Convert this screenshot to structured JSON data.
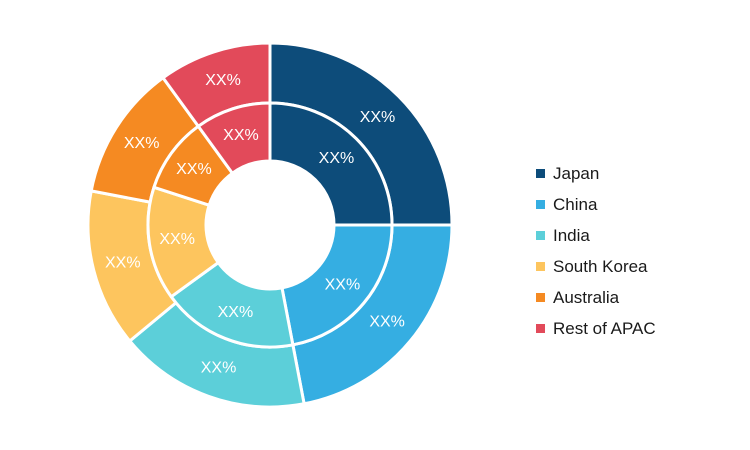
{
  "chart_data": {
    "type": "donut",
    "categories": [
      "Japan",
      "China",
      "India",
      "South Korea",
      "Australia",
      "Rest of APAC"
    ],
    "colors": [
      "#0d4c7a",
      "#35aee2",
      "#5ccfd9",
      "#fdc55e",
      "#f58a22",
      "#e24a5a"
    ],
    "series": [
      {
        "values": [
          25,
          22,
          17,
          14,
          12,
          10
        ],
        "labels": [
          "XX%",
          "XX%",
          "XX%",
          "XX%",
          "XX%",
          "XX%"
        ]
      },
      {
        "values": [
          25,
          22,
          18,
          15,
          10,
          10
        ],
        "labels": [
          "XX%",
          "XX%",
          "XX%",
          "XX%",
          "XX%",
          "XX%"
        ]
      }
    ],
    "legend": {
      "position": "right",
      "items": [
        "Japan",
        "China",
        "India",
        "South Korea",
        "Australia",
        "Rest of APAC"
      ]
    }
  }
}
